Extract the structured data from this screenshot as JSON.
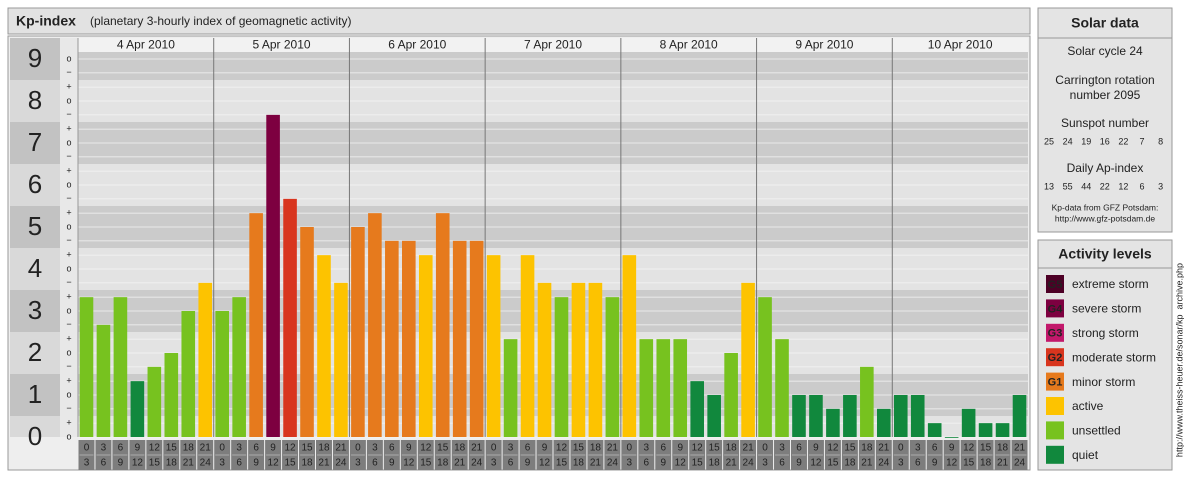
{
  "chart_data": {
    "type": "bar",
    "title": "Kp-index",
    "subtitle": "(planetary 3-hourly index of geomagnetic activity)",
    "ylim": [
      0,
      9.5
    ],
    "yticks": [
      0,
      1,
      2,
      3,
      4,
      5,
      6,
      7,
      8,
      9
    ],
    "yminor": [
      {
        "value": 0,
        "label": "o"
      },
      {
        "value": 0.33,
        "label": "+"
      },
      {
        "value": 0.67,
        "label": "−"
      },
      {
        "value": 1,
        "label": "o"
      },
      {
        "value": 1.33,
        "label": "+"
      },
      {
        "value": 1.67,
        "label": "−"
      },
      {
        "value": 2,
        "label": "o"
      },
      {
        "value": 2.33,
        "label": "+"
      },
      {
        "value": 2.67,
        "label": "−"
      },
      {
        "value": 3,
        "label": "o"
      },
      {
        "value": 3.33,
        "label": "+"
      },
      {
        "value": 3.67,
        "label": "−"
      },
      {
        "value": 4,
        "label": "o"
      },
      {
        "value": 4.33,
        "label": "+"
      },
      {
        "value": 4.67,
        "label": "−"
      },
      {
        "value": 5,
        "label": "o"
      },
      {
        "value": 5.33,
        "label": "+"
      },
      {
        "value": 5.67,
        "label": "−"
      },
      {
        "value": 6,
        "label": "o"
      },
      {
        "value": 6.33,
        "label": "+"
      },
      {
        "value": 6.67,
        "label": "−"
      },
      {
        "value": 7,
        "label": "o"
      },
      {
        "value": 7.33,
        "label": "+"
      },
      {
        "value": 7.67,
        "label": "−"
      },
      {
        "value": 8,
        "label": "o"
      },
      {
        "value": 8.33,
        "label": "+"
      },
      {
        "value": 8.67,
        "label": "−"
      },
      {
        "value": 9,
        "label": "o"
      }
    ],
    "intervals": [
      {
        "from": 0,
        "to": 3
      },
      {
        "from": 3,
        "to": 6
      },
      {
        "from": 6,
        "to": 9
      },
      {
        "from": 9,
        "to": 12
      },
      {
        "from": 12,
        "to": 15
      },
      {
        "from": 15,
        "to": 18
      },
      {
        "from": 18,
        "to": 21
      },
      {
        "from": 21,
        "to": 24
      }
    ],
    "days": [
      {
        "date": "4 Apr 2010",
        "values": [
          3.33,
          2.67,
          3.33,
          1.33,
          1.67,
          2,
          3,
          3.67
        ],
        "colors": [
          "#77c21f",
          "#77c21f",
          "#77c21f",
          "#11883d",
          "#77c21f",
          "#77c21f",
          "#77c21f",
          "#fdc300"
        ]
      },
      {
        "date": "5 Apr 2010",
        "values": [
          3,
          3.33,
          5.33,
          7.67,
          5.67,
          5,
          4.33,
          3.67
        ],
        "colors": [
          "#77c21f",
          "#77c21f",
          "#e67a1d",
          "#7d0040",
          "#d8351e",
          "#e67a1d",
          "#fdc300",
          "#fdc300"
        ]
      },
      {
        "date": "6 Apr 2010",
        "values": [
          5,
          5.33,
          4.67,
          4.67,
          4.33,
          5.33,
          4.67,
          4.67
        ],
        "colors": [
          "#e67a1d",
          "#e67a1d",
          "#e67a1d",
          "#e67a1d",
          "#fdc300",
          "#e67a1d",
          "#e67a1d",
          "#e67a1d"
        ]
      },
      {
        "date": "7 Apr 2010",
        "values": [
          4.33,
          2.33,
          4.33,
          3.67,
          3.33,
          3.67,
          3.67,
          3.33
        ],
        "colors": [
          "#fdc300",
          "#77c21f",
          "#fdc300",
          "#fdc300",
          "#77c21f",
          "#fdc300",
          "#fdc300",
          "#77c21f"
        ]
      },
      {
        "date": "8 Apr 2010",
        "values": [
          4.33,
          2.33,
          2.33,
          2.33,
          1.33,
          1,
          2,
          3.67
        ],
        "colors": [
          "#fdc300",
          "#77c21f",
          "#77c21f",
          "#77c21f",
          "#11883d",
          "#11883d",
          "#77c21f",
          "#fdc300"
        ]
      },
      {
        "date": "9 Apr 2010",
        "values": [
          3.33,
          2.33,
          1,
          1,
          0.67,
          1,
          1.67,
          0.67
        ],
        "colors": [
          "#77c21f",
          "#77c21f",
          "#11883d",
          "#11883d",
          "#11883d",
          "#11883d",
          "#77c21f",
          "#11883d"
        ]
      },
      {
        "date": "10 Apr 2010",
        "values": [
          1,
          1,
          0.33,
          0,
          0.67,
          0.33,
          0.33,
          1
        ],
        "colors": [
          "#11883d",
          "#11883d",
          "#11883d",
          "#11883d",
          "#11883d",
          "#11883d",
          "#11883d",
          "#11883d"
        ]
      }
    ]
  },
  "solar_data": {
    "title": "Solar data",
    "cycle": "Solar cycle 24",
    "carrington": [
      "Carrington rotation",
      "number 2095"
    ],
    "sunspot_label": "Sunspot number",
    "sunspot": [
      25,
      24,
      19,
      16,
      22,
      7,
      8
    ],
    "ap_label": "Daily Ap-index",
    "ap": [
      13,
      55,
      44,
      22,
      12,
      6,
      3
    ],
    "source": "Kp-data from GFZ Potsdam:",
    "url": "http://www.gfz-potsdam.de"
  },
  "activity_levels": {
    "title": "Activity levels",
    "items": [
      {
        "badge": "G5",
        "label": "extreme storm",
        "color": "#4d0026"
      },
      {
        "badge": "G4",
        "label": "severe storm",
        "color": "#7d0040"
      },
      {
        "badge": "G3",
        "label": "strong storm",
        "color": "#c2186b"
      },
      {
        "badge": "G2",
        "label": "moderate storm",
        "color": "#d8351e"
      },
      {
        "badge": "G1",
        "label": "minor storm",
        "color": "#e67a1d"
      },
      {
        "label": "active",
        "color": "#fdc300"
      },
      {
        "label": "unsettled",
        "color": "#77c21f"
      },
      {
        "label": "quiet",
        "color": "#11883d"
      }
    ]
  },
  "watermark": "http://www.theiss-heuer.de/sonar/kp_archive.php"
}
